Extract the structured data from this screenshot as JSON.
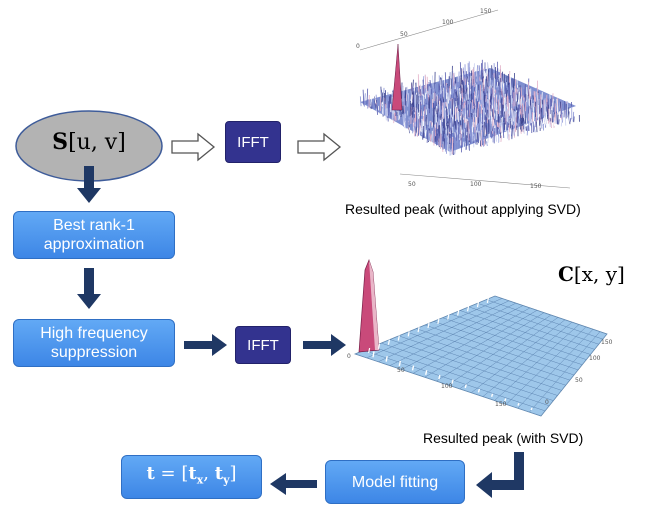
{
  "input_node": {
    "symbol": "S",
    "args": "[u, v]"
  },
  "ifft_top": {
    "label": "IFFT"
  },
  "ifft_mid": {
    "label": "IFFT"
  },
  "rank1_box": {
    "label": "Best rank-1\napproximation"
  },
  "hf_box": {
    "label": "High frequency\nsuppression"
  },
  "model_box": {
    "label": "Model fitting"
  },
  "output_box": {
    "symbol": "t",
    "equals": " = [",
    "tx": "t",
    "tx_sub": "x",
    "sep": ", ",
    "ty": "t",
    "ty_sub": "y",
    "close": "]"
  },
  "caption_top": "Resulted peak (without applying SVD)",
  "caption_bottom": "Resulted peak (with SVD)",
  "corr_label": {
    "symbol": "C",
    "args": "[x, y]"
  },
  "plot_top": {
    "axis_ticks_back": [
      "0",
      "50",
      "100",
      "150"
    ],
    "axis_ticks_front": [
      "50",
      "100",
      "150"
    ]
  },
  "plot_bottom": {
    "axis_ticks_left": [
      "0",
      "50",
      "100",
      "150"
    ],
    "axis_ticks_right": [
      "0",
      "50",
      "100",
      "150"
    ]
  },
  "colors": {
    "box": "#4a90e8",
    "ifft": "#33338f",
    "arrow": "#1f3864",
    "ellipse": "#b3b3b3",
    "surface": "#9ec7ea"
  }
}
